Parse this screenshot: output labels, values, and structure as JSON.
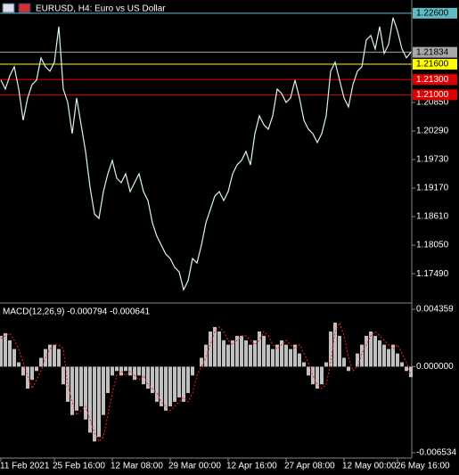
{
  "chart_data": [
    {
      "type": "line",
      "title": "EURUSD, H4:  Euro vs US Dollar",
      "categories": [
        "11 Feb 2021",
        null,
        null,
        null,
        null,
        null,
        null,
        null,
        null,
        null,
        null,
        null,
        "25 Feb 16:00",
        null,
        null,
        null,
        null,
        null,
        null,
        null,
        null,
        null,
        null,
        null,
        null,
        "12 Mar 08:00",
        null,
        null,
        null,
        null,
        null,
        null,
        null,
        null,
        null,
        null,
        null,
        null,
        "29 Mar 00:00",
        null,
        null,
        null,
        null,
        null,
        null,
        null,
        null,
        null,
        null,
        null,
        null,
        "12 Apr 16:00",
        null,
        null,
        null,
        null,
        null,
        null,
        null,
        null,
        null,
        null,
        null,
        null,
        "27 Apr 08:00",
        null,
        null,
        null,
        null,
        null,
        null,
        null,
        null,
        null,
        null,
        null,
        null,
        "12 May 00:00",
        null,
        null,
        null,
        null,
        null,
        null,
        null,
        null,
        null,
        null,
        null,
        "26 May 16:00",
        null,
        null,
        null
      ],
      "values": [
        1.21288,
        1.21113,
        1.21375,
        1.2155,
        1.21113,
        1.205,
        1.20938,
        1.212,
        1.21288,
        1.21725,
        1.2155,
        1.21463,
        1.21638,
        1.22338,
        1.21113,
        1.2085,
        1.20238,
        1.20938,
        1.20413,
        1.19888,
        1.19188,
        1.18663,
        1.18575,
        1.191,
        1.1945,
        1.19713,
        1.19363,
        1.19275,
        1.1945,
        1.191,
        1.19275,
        1.1945,
        1.191,
        1.18925,
        1.18488,
        1.18225,
        1.1805,
        1.17875,
        1.17788,
        1.17613,
        1.17525,
        1.17175,
        1.1735,
        1.17788,
        1.177,
        1.1805,
        1.18488,
        1.1875,
        1.19013,
        1.191,
        1.18925,
        1.191,
        1.1945,
        1.19625,
        1.19713,
        1.19888,
        1.19625,
        1.20238,
        1.20588,
        1.20413,
        1.20325,
        1.20588,
        1.21113,
        1.21025,
        1.2085,
        1.20938,
        1.21288,
        1.20938,
        1.205,
        1.20325,
        1.20238,
        1.20063,
        1.20238,
        1.20588,
        1.21463,
        1.21638,
        1.21288,
        1.20938,
        1.20763,
        1.212,
        1.21463,
        1.2155,
        1.22075,
        1.22163,
        1.219,
        1.22338,
        1.21813,
        1.21988,
        1.22513,
        1.2225,
        1.219,
        1.21725,
        1.21834
      ],
      "color": "#d8f4f4",
      "ylim": [
        1.1695,
        1.2286
      ],
      "yticks": [
        {
          "value": 1.1749,
          "label": "1.17490"
        },
        {
          "value": 1.1805,
          "label": "1.18050"
        },
        {
          "value": 1.1861,
          "label": "1.18610"
        },
        {
          "value": 1.1917,
          "label": "1.19170"
        },
        {
          "value": 1.1973,
          "label": "1.19730"
        },
        {
          "value": 1.2029,
          "label": "1.20290"
        },
        {
          "value": 1.2085,
          "label": "1.20850"
        }
      ],
      "levels": [
        {
          "value": 1.226,
          "label": "1.22600",
          "color": "#5fbcc4"
        },
        {
          "value": 1.21834,
          "label": "1.21834",
          "color": "#a8a8a8"
        },
        {
          "value": 1.216,
          "label": "1.21600",
          "color": "#ffff00"
        },
        {
          "value": 1.213,
          "label": "1.21300",
          "color": "#e00000"
        },
        {
          "value": 1.21,
          "label": "1.21000",
          "color": "#e00000"
        }
      ]
    },
    {
      "type": "macd",
      "title": "MACD(12,26,9) -0.000794 -0.000641",
      "values": [
        0.00234,
        0.00254,
        0.002,
        0.00134,
        0.00033,
        -0.00067,
        -0.00167,
        -0.001,
        -0.00033,
        0.00067,
        0.00134,
        0.00167,
        0.00167,
        0.00134,
        -0.00134,
        -0.00267,
        -0.00367,
        -0.00334,
        -0.00301,
        -0.00401,
        -0.00501,
        -0.00568,
        -0.00534,
        -0.00367,
        -0.002,
        -0.00067,
        -0.00033,
        -0.00067,
        -0.00033,
        -0.00067,
        -0.001,
        -0.00067,
        -0.00134,
        -0.00167,
        -0.002,
        -0.00267,
        -0.00301,
        -0.00334,
        -0.00301,
        -0.00267,
        -0.00234,
        -0.00267,
        -0.002,
        -0.00067,
        0,
        0.00067,
        0.00167,
        0.00267,
        0.00301,
        0.00267,
        0.002,
        0.00167,
        0.002,
        0.00234,
        0.00234,
        0.002,
        0.00167,
        0.002,
        0.00267,
        0.00234,
        0.00167,
        0.00134,
        0.00167,
        0.002,
        0.00167,
        0.00134,
        0.00167,
        0.001,
        0.00033,
        -0.00067,
        -0.00134,
        -0.00167,
        -0.00134,
        0.00033,
        0.00267,
        0.00334,
        0.00234,
        0.00067,
        -0.00033,
        0,
        0.001,
        0.00167,
        0.00234,
        0.00267,
        0.00234,
        0.002,
        0.00167,
        0.00134,
        0.00167,
        0.001,
        0.00033,
        -0.00033,
        -0.000794
      ],
      "signal": [
        0.00214,
        0.00234,
        0.00254,
        0.002,
        0.00134,
        0.00033,
        -0.00067,
        -0.00167,
        -0.001,
        -0.00033,
        0.00067,
        0.00134,
        0.00167,
        0.00167,
        0.00134,
        -0.00134,
        -0.00267,
        -0.00367,
        -0.00334,
        -0.00301,
        -0.00401,
        -0.00501,
        -0.00568,
        -0.00534,
        -0.00367,
        -0.002,
        -0.00067,
        -0.00033,
        -0.00067,
        -0.00033,
        -0.00067,
        -0.001,
        -0.00067,
        -0.00134,
        -0.00167,
        -0.002,
        -0.00267,
        -0.00301,
        -0.00334,
        -0.00301,
        -0.00267,
        -0.00234,
        -0.00267,
        -0.002,
        -0.00067,
        0,
        0.00067,
        0.00167,
        0.00267,
        0.00301,
        0.00267,
        0.002,
        0.00167,
        0.002,
        0.00234,
        0.00234,
        0.002,
        0.00167,
        0.002,
        0.00267,
        0.00234,
        0.00167,
        0.00134,
        0.00167,
        0.002,
        0.00167,
        0.00134,
        0.00167,
        0.001,
        0.00033,
        -0.00067,
        -0.00134,
        -0.00167,
        -0.00134,
        0.00033,
        0.00267,
        0.00334,
        0.00234,
        0.00067,
        -0.00033,
        0,
        0.001,
        0.00167,
        0.00234,
        0.00267,
        0.00234,
        0.002,
        0.00167,
        0.00134,
        0.00167,
        0.001,
        0.00033,
        -0.000641
      ],
      "color": "#c0c0c0",
      "signal_color": "#ff2020",
      "ylim": [
        -0.006534,
        0.004359
      ],
      "yticks": [
        0.004359,
        {
          "value": 0,
          "label": "0.000000"
        },
        -0.006534
      ]
    }
  ]
}
